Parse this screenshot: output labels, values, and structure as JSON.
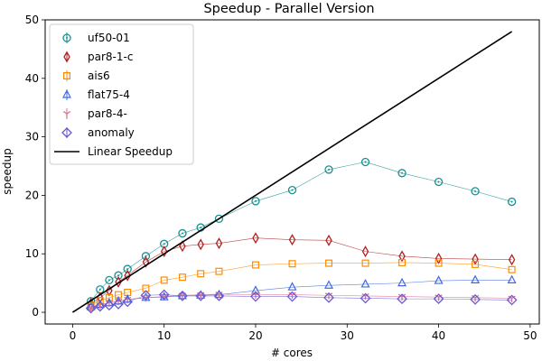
{
  "chart_data": {
    "type": "scatter",
    "title": "Speedup - Parallel Version",
    "xlabel": "# cores",
    "ylabel": "speedup",
    "xlim": [
      -3,
      51
    ],
    "ylim": [
      -2,
      50
    ],
    "xticks": [
      0,
      10,
      20,
      30,
      40,
      50
    ],
    "yticks": [
      0,
      10,
      20,
      30,
      40,
      50
    ],
    "grid": false,
    "legend_position": "top-left",
    "series": [
      {
        "name": "uf50-01",
        "color": "#1a9090",
        "marker": "circle",
        "x": [
          2,
          3,
          4,
          5,
          6,
          8,
          10,
          12,
          14,
          16,
          20,
          24,
          28,
          32,
          36,
          40,
          44,
          48
        ],
        "y": [
          1.9,
          3.9,
          5.5,
          6.3,
          7.4,
          9.6,
          11.7,
          13.5,
          14.5,
          16.0,
          19.0,
          20.9,
          24.4,
          25.7,
          23.8,
          22.3,
          20.7,
          18.9
        ]
      },
      {
        "name": "par8-1-c",
        "color": "#b22222",
        "marker": "thin_diamond",
        "x": [
          2,
          3,
          4,
          5,
          6,
          8,
          10,
          12,
          14,
          16,
          20,
          24,
          28,
          32,
          36,
          40,
          44,
          48
        ],
        "y": [
          1.5,
          2.5,
          3.7,
          5.2,
          6.3,
          8.6,
          10.4,
          11.3,
          11.6,
          11.8,
          12.7,
          12.4,
          12.3,
          10.4,
          9.6,
          9.2,
          9.1,
          9.0
        ]
      },
      {
        "name": "ais6",
        "color": "#ff8c00",
        "marker": "square",
        "x": [
          2,
          3,
          4,
          5,
          6,
          8,
          10,
          12,
          14,
          16,
          20,
          24,
          28,
          32,
          36,
          40,
          44,
          48
        ],
        "y": [
          1.2,
          2.0,
          2.5,
          3.0,
          3.4,
          4.1,
          5.5,
          6.0,
          6.6,
          7.0,
          8.1,
          8.3,
          8.4,
          8.4,
          8.5,
          8.4,
          8.2,
          7.3
        ]
      },
      {
        "name": "flat75-4",
        "color": "#4169e1",
        "marker": "triangle",
        "x": [
          2,
          3,
          4,
          5,
          6,
          8,
          10,
          12,
          14,
          16,
          20,
          24,
          28,
          32,
          36,
          40,
          44,
          48
        ],
        "y": [
          0.9,
          1.3,
          1.6,
          1.9,
          2.2,
          2.5,
          2.6,
          2.8,
          2.9,
          3.0,
          3.7,
          4.3,
          4.6,
          4.8,
          5.0,
          5.4,
          5.5,
          5.5
        ]
      },
      {
        "name": "par8-4-",
        "color": "#db7093",
        "marker": "tri_down",
        "x": [
          2,
          3,
          4,
          5,
          6,
          8,
          10,
          12,
          14,
          16,
          20,
          24,
          28,
          32,
          36,
          40,
          44,
          48
        ],
        "y": [
          0.8,
          1.2,
          1.6,
          1.9,
          2.2,
          2.5,
          2.7,
          2.9,
          3.0,
          3.1,
          3.0,
          3.0,
          2.9,
          2.8,
          2.7,
          2.6,
          2.5,
          2.4
        ]
      },
      {
        "name": "anomaly",
        "color": "#6a5acd",
        "marker": "diamond",
        "x": [
          2,
          3,
          4,
          5,
          6,
          8,
          10,
          12,
          14,
          16,
          20,
          24,
          28,
          32,
          36,
          40,
          44,
          48
        ],
        "y": [
          0.7,
          1.0,
          1.2,
          1.4,
          1.8,
          2.9,
          3.0,
          2.8,
          2.8,
          2.8,
          2.7,
          2.7,
          2.5,
          2.4,
          2.3,
          2.3,
          2.2,
          2.1
        ]
      }
    ],
    "reference_line": {
      "name": "Linear Speedup",
      "color": "#000000",
      "x": [
        0,
        48
      ],
      "y": [
        0,
        48
      ]
    }
  }
}
